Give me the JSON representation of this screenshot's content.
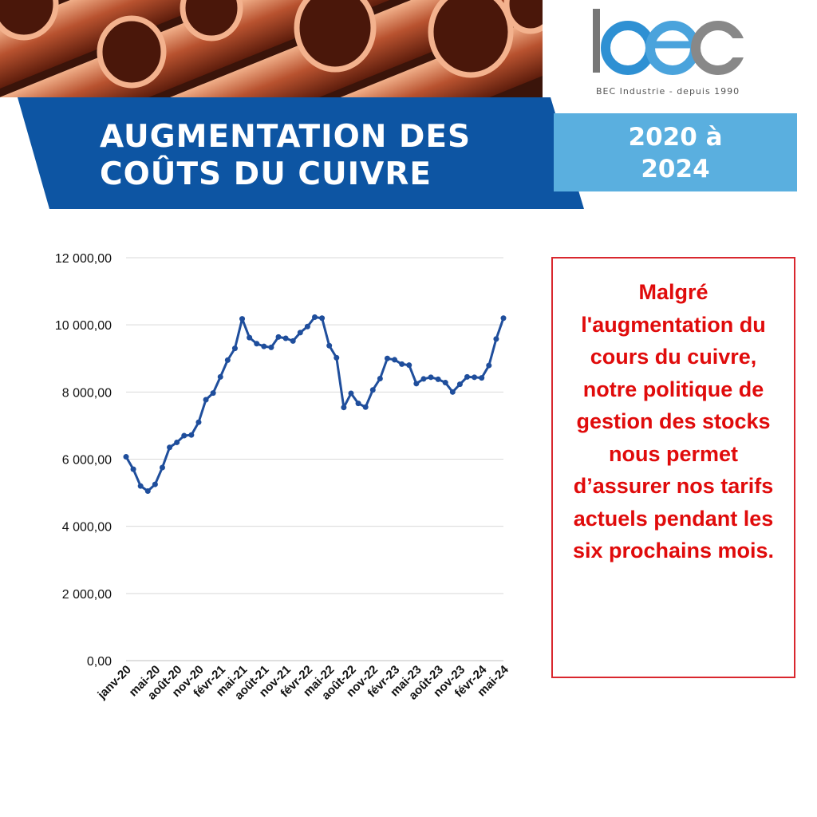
{
  "header": {
    "title_lines": [
      "AUGMENTATION DES",
      "COÛTS DU CUIVRE"
    ],
    "years_lines": [
      "2020 à",
      "2024"
    ],
    "photo": "copper-pipes-photo"
  },
  "logo": {
    "text": "bec",
    "tagline": "BEC Industrie - depuis 1990"
  },
  "note": {
    "text": "Malgré l'augmentation du cours du cuivre, notre politique de gestion des stocks nous permet d’assurer nos tarifs actuels pendant les six prochains mois."
  },
  "colors": {
    "banner_blue": "#0d55a3",
    "light_blue": "#5aafdf",
    "line_blue": "#1f4e9c",
    "note_red": "#e00b0b",
    "border_red": "#d9272e"
  },
  "chart_data": {
    "type": "line",
    "title": "",
    "xlabel": "",
    "ylabel": "",
    "ylim": [
      0,
      12000
    ],
    "y_ticks": [
      "0,00",
      "2 000,00",
      "4 000,00",
      "6 000,00",
      "8 000,00",
      "10 000,00",
      "12 000,00"
    ],
    "x_tick_labels": [
      "janv-20",
      "mai-20",
      "août-20",
      "nov-20",
      "févr-21",
      "mai-21",
      "août-21",
      "nov-21",
      "févr-22",
      "mai-22",
      "août-22",
      "nov-22",
      "févr-23",
      "mai-23",
      "août-23",
      "nov-23",
      "févr-24",
      "mai-24"
    ],
    "grid": true,
    "legend": "none",
    "x": [
      "janv-20",
      "févr-20",
      "mars-20",
      "avr-20",
      "mai-20",
      "juin-20",
      "juil-20",
      "août-20",
      "sept-20",
      "oct-20",
      "nov-20",
      "déc-20",
      "janv-21",
      "févr-21",
      "mars-21",
      "avr-21",
      "mai-21",
      "juin-21",
      "juil-21",
      "août-21",
      "sept-21",
      "oct-21",
      "nov-21",
      "déc-21",
      "janv-22",
      "févr-22",
      "mars-22",
      "avr-22",
      "mai-22",
      "juin-22",
      "juil-22",
      "août-22",
      "sept-22",
      "oct-22",
      "nov-22",
      "déc-22",
      "janv-23",
      "févr-23",
      "mars-23",
      "avr-23",
      "mai-23",
      "juin-23",
      "juil-23",
      "août-23",
      "sept-23",
      "oct-23",
      "nov-23",
      "déc-23",
      "janv-24",
      "févr-24",
      "mars-24",
      "avr-24",
      "mai-24"
    ],
    "series": [
      {
        "values": [
          6070,
          5700,
          5200,
          5050,
          5250,
          5750,
          6350,
          6500,
          6700,
          6720,
          7100,
          7770,
          7970,
          8450,
          8950,
          9300,
          10180,
          9620,
          9440,
          9360,
          9330,
          9640,
          9600,
          9520,
          9770,
          9950,
          10230,
          10200,
          9380,
          9020,
          7540,
          7960,
          7660,
          7550,
          8060,
          8400,
          9000,
          8960,
          8830,
          8800,
          8250,
          8390,
          8440,
          8380,
          8280,
          8000,
          8230,
          8450,
          8440,
          8420,
          8790,
          9580,
          10200
        ]
      }
    ]
  }
}
